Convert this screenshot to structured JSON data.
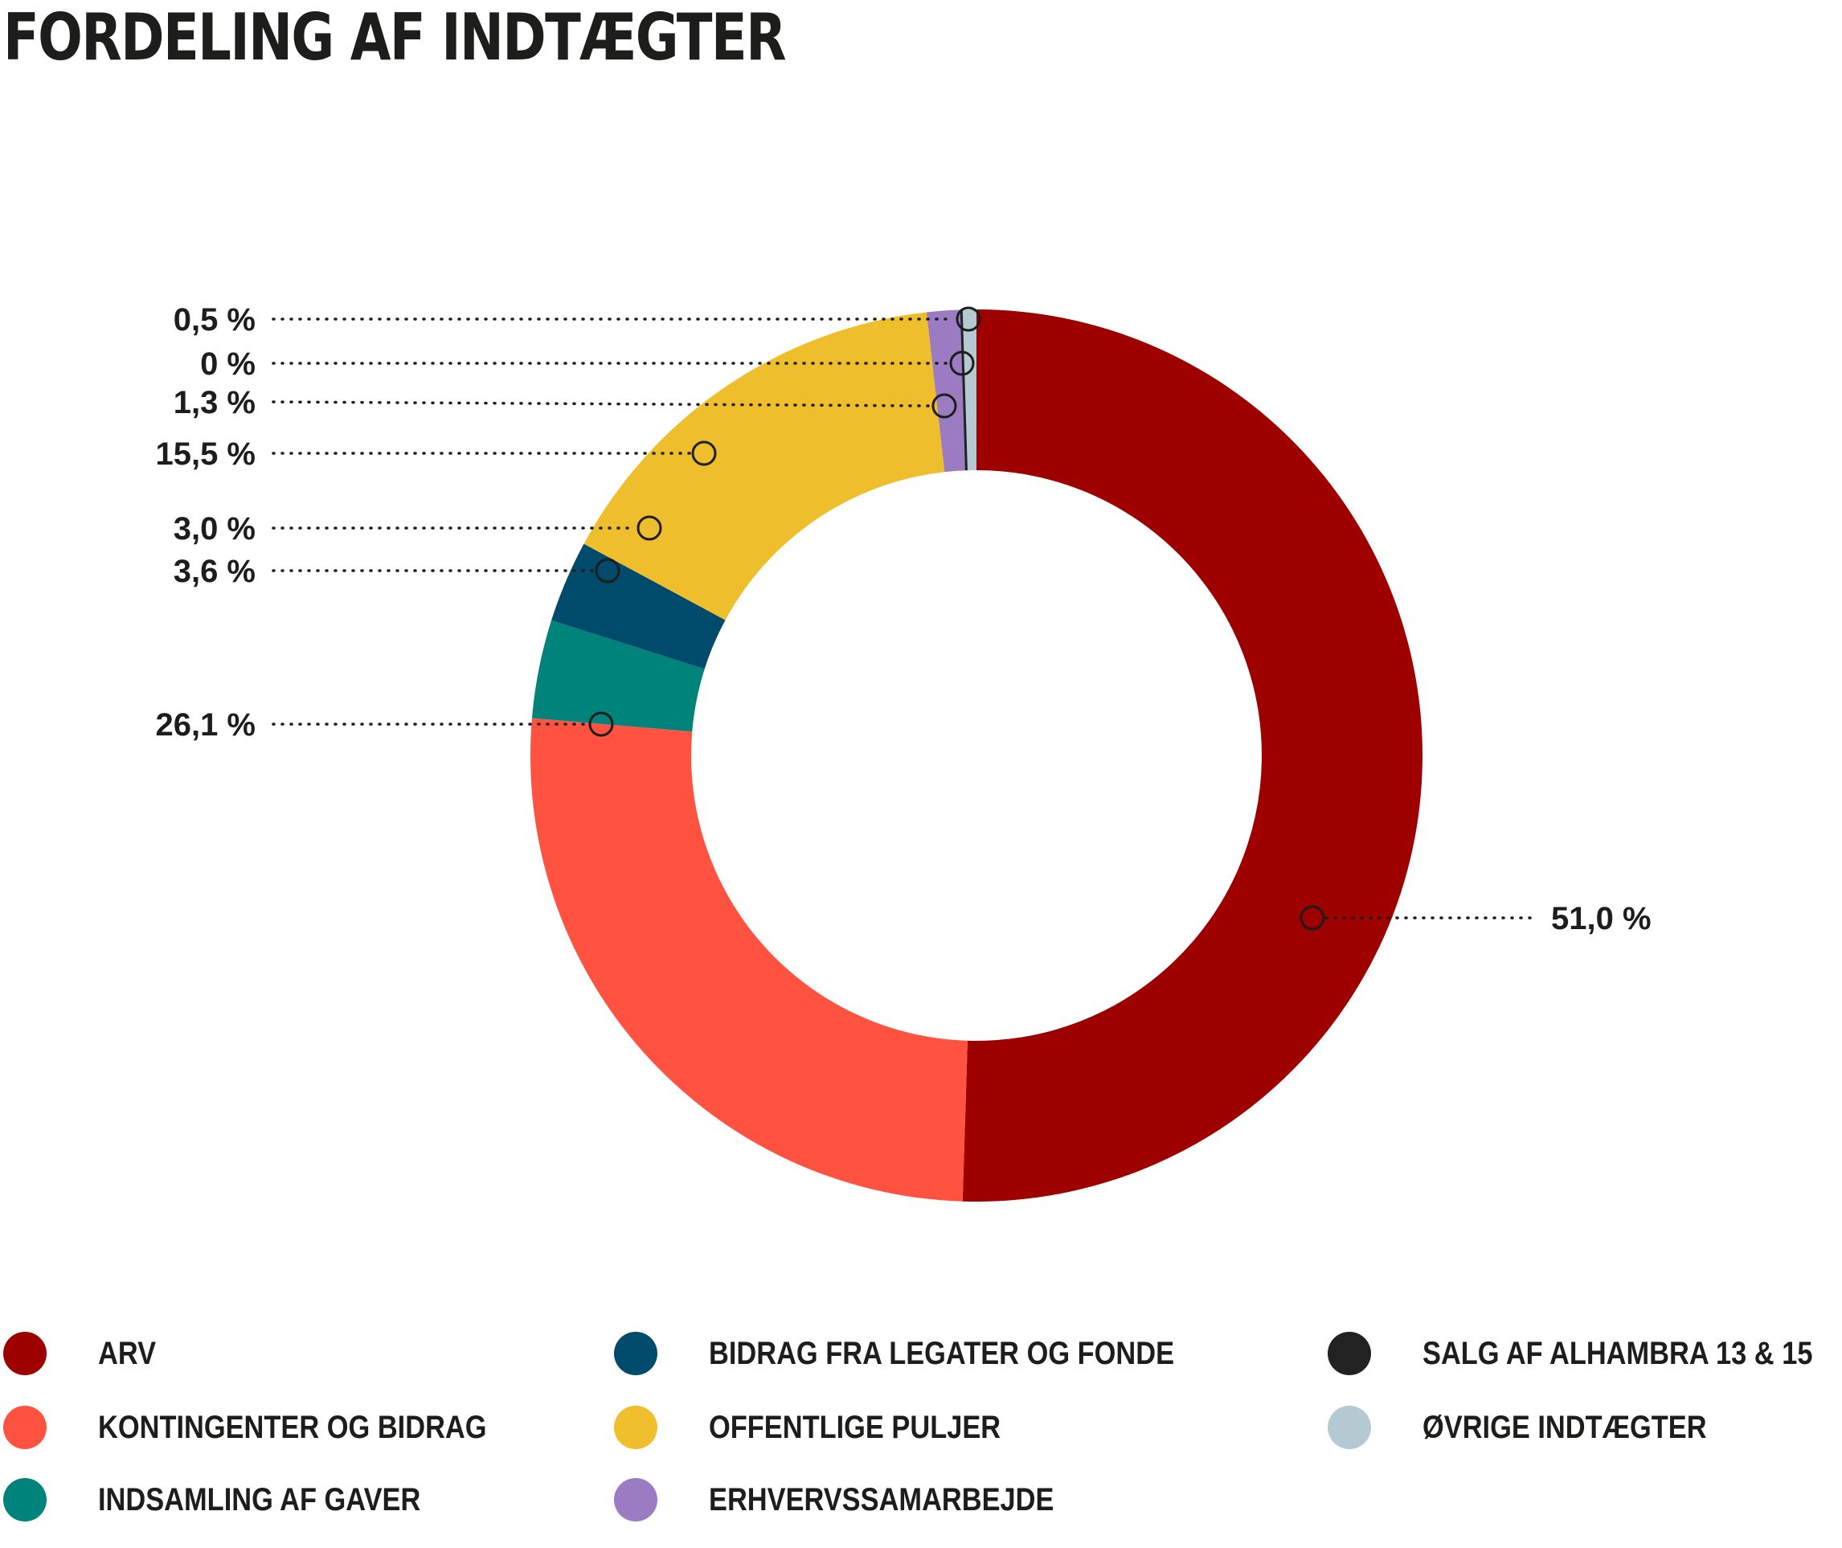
{
  "title": "FORDELING AF INDTÆGTER",
  "chart_data": {
    "type": "pie",
    "title": "FORDELING AF INDTÆGTER",
    "series": [
      {
        "name": "ARV",
        "value": 51.0,
        "label": "51,0 %",
        "color": "#9e0000"
      },
      {
        "name": "KONTINGENTER OG BIDRAG",
        "value": 26.1,
        "label": "26,1 %",
        "color": "#ff5240"
      },
      {
        "name": "INDSAMLING AF GAVER",
        "value": 3.6,
        "label": "3,6 %",
        "color": "#00837a"
      },
      {
        "name": "BIDRAG FRA LEGATER OG FONDE",
        "value": 3.0,
        "label": "3,0 %",
        "color": "#004a6b"
      },
      {
        "name": "OFFENTLIGE PULJER",
        "value": 15.5,
        "label": "15,5 %",
        "color": "#efbe2d"
      },
      {
        "name": "ERHVERVSSAMARBEJDE",
        "value": 1.3,
        "label": "1,3 %",
        "color": "#9b7bc1"
      },
      {
        "name": "SALG AF ALHAMBRA 13 & 15",
        "value": 0.0,
        "label": "0 %",
        "color": "#222222"
      },
      {
        "name": "ØVRIGE INDTÆGTER",
        "value": 0.5,
        "label": "0,5 %",
        "color": "#b5c9d3"
      }
    ],
    "legend_placement": "bottom"
  }
}
